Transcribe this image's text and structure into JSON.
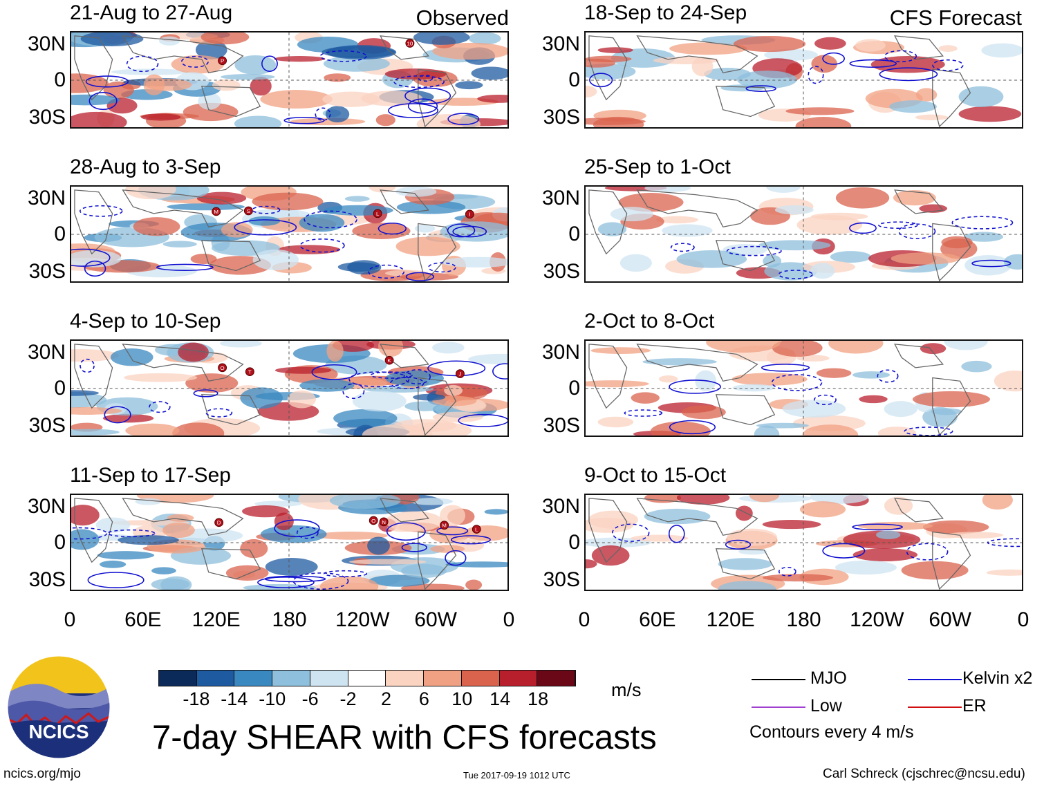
{
  "column_headings": {
    "observed": "Observed",
    "forecast": "CFS Forecast"
  },
  "panels": [
    {
      "title": "21-Aug to 27-Aug",
      "type": "observed",
      "storms": [
        "P",
        "10"
      ]
    },
    {
      "title": "28-Aug to 3-Sep",
      "type": "observed",
      "storms": [
        "M",
        "S",
        "L",
        "I"
      ]
    },
    {
      "title": "4-Sep to 10-Sep",
      "type": "observed",
      "storms": [
        "O",
        "T",
        "K",
        "J"
      ]
    },
    {
      "title": "11-Sep to 17-Sep",
      "type": "observed",
      "storms": [
        "D",
        "O",
        "N",
        "M",
        "L"
      ]
    },
    {
      "title": "18-Sep to 24-Sep",
      "type": "forecast",
      "storms": []
    },
    {
      "title": "25-Sep to 1-Oct",
      "type": "forecast",
      "storms": []
    },
    {
      "title": "2-Oct to 8-Oct",
      "type": "forecast",
      "storms": []
    },
    {
      "title": "9-Oct to 15-Oct",
      "type": "forecast",
      "storms": []
    }
  ],
  "lat_labels": [
    "30N",
    "0",
    "30S"
  ],
  "lon_labels": [
    "0",
    "60E",
    "120E",
    "180",
    "120W",
    "60W",
    "0"
  ],
  "colorbar": {
    "colors": [
      "#0b2a5a",
      "#1d5aa0",
      "#3a88c0",
      "#8ebfdc",
      "#cfe4f1",
      "#ffffff",
      "#fbd3c1",
      "#f1a183",
      "#d9634d",
      "#b81f2c",
      "#6a0818"
    ],
    "labels": [
      "-18",
      "-14",
      "-10",
      "-6",
      "-2",
      "2",
      "6",
      "10",
      "14",
      "18"
    ],
    "units": "m/s"
  },
  "legend": {
    "items": [
      {
        "label": "MJO",
        "color": "#000000"
      },
      {
        "label": "Kelvin x2",
        "color": "#1010d0"
      },
      {
        "label": "Low",
        "color": "#a040d0"
      },
      {
        "label": "ER",
        "color": "#d01010"
      }
    ],
    "note": "Contours every 4 m/s"
  },
  "main_title": "7-day SHEAR with CFS forecasts",
  "logo_text": "NCICS",
  "footer": {
    "url": "ncics.org/mjo",
    "timestamp": "Tue 2017-09-19 1012 UTC",
    "author": "Carl Schreck (cjschrec@ncsu.edu)"
  }
}
